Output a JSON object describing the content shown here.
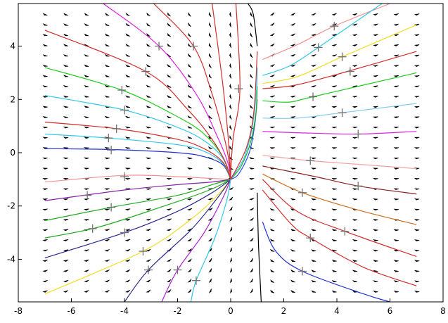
{
  "chart_data": {
    "type": "line",
    "title": "",
    "xlabel": "",
    "ylabel": "",
    "xlim": [
      -8,
      8
    ],
    "ylim": [
      -5.6,
      5.6
    ],
    "grid": false,
    "legend": "none",
    "x_ticks": [
      "-8",
      "-6",
      "-4",
      "-2",
      "0",
      "2",
      "4",
      "6",
      "8"
    ],
    "y_ticks": [
      "-4",
      "-2",
      "0",
      "2",
      "4"
    ],
    "vector_field": {
      "x_range": [
        -7,
        7
      ],
      "y_range": [
        -5.2,
        5.2
      ],
      "nx": 19,
      "ny": 28,
      "color": "#000000"
    },
    "series": [
      {
        "color": "#1f2fd0",
        "points": [
          [
            -7,
            0.15
          ],
          [
            -4.5,
            0.12
          ],
          [
            -2,
            0.0
          ],
          [
            -1,
            -0.15
          ],
          [
            -0.3,
            -0.45
          ],
          [
            0,
            -1
          ]
        ]
      },
      {
        "color": "#30c8e6",
        "points": [
          [
            -7,
            0.7
          ],
          [
            -4.6,
            0.55
          ],
          [
            -2,
            0.3
          ],
          [
            -1,
            0.05
          ],
          [
            -0.3,
            -0.4
          ],
          [
            0,
            -1
          ]
        ]
      },
      {
        "color": "#d22c2c",
        "points": [
          [
            -7,
            1.15
          ],
          [
            -4.3,
            0.9
          ],
          [
            -2,
            0.5
          ],
          [
            -1,
            0.15
          ],
          [
            -0.3,
            -0.35
          ],
          [
            0,
            -1
          ]
        ]
      },
      {
        "color": "#30c8e6",
        "points": [
          [
            -7,
            2.15
          ],
          [
            -4,
            1.6
          ],
          [
            -2,
            0.95
          ],
          [
            -1,
            0.45
          ],
          [
            -0.3,
            -0.2
          ],
          [
            0,
            -1
          ]
        ]
      },
      {
        "color": "#22cc22",
        "points": [
          [
            -7,
            3.2
          ],
          [
            -4.1,
            2.35
          ],
          [
            -2,
            1.35
          ],
          [
            -1,
            0.7
          ],
          [
            -0.3,
            -0.15
          ],
          [
            0,
            -1
          ]
        ]
      },
      {
        "color": "#d22c2c",
        "points": [
          [
            -7,
            4.6
          ],
          [
            -3.2,
            3.05
          ],
          [
            -1.6,
            1.6
          ],
          [
            -0.7,
            0.5
          ],
          [
            -0.2,
            -0.35
          ],
          [
            0,
            -1
          ]
        ]
      },
      {
        "color": "#dd22dd",
        "points": [
          [
            -4.8,
            5.6
          ],
          [
            -2.7,
            4.0
          ],
          [
            -1.3,
            2.2
          ],
          [
            -0.5,
            0.6
          ],
          [
            -0.1,
            -0.4
          ],
          [
            0,
            -1
          ]
        ]
      },
      {
        "color": "#d22c2c",
        "points": [
          [
            -2.9,
            5.6
          ],
          [
            -1.4,
            4.0
          ],
          [
            -0.7,
            2.2
          ],
          [
            -0.25,
            0.6
          ],
          [
            -0.05,
            -0.4
          ],
          [
            0,
            -1
          ]
        ]
      },
      {
        "color": "#d22c2c",
        "points": [
          [
            -0.7,
            5.6
          ],
          [
            -0.35,
            3.0
          ],
          [
            -0.15,
            1.2
          ],
          [
            -0.03,
            -0.3
          ],
          [
            0,
            -1
          ]
        ]
      },
      {
        "color": "#d22c2c",
        "points": [
          [
            0.2,
            5.6
          ],
          [
            0.35,
            2.4
          ],
          [
            0.1,
            0.6
          ],
          [
            0.02,
            -0.4
          ],
          [
            0,
            -1
          ]
        ]
      },
      {
        "color": "#f09090",
        "points": [
          [
            -7,
            -1.1
          ],
          [
            -4,
            -0.85
          ],
          [
            -2,
            -0.9
          ],
          [
            -1,
            -0.95
          ],
          [
            0,
            -1
          ]
        ]
      },
      {
        "color": "#8822aa",
        "points": [
          [
            -7,
            -1.8
          ],
          [
            -4,
            -1.4
          ],
          [
            -2,
            -1.2
          ],
          [
            -0.7,
            -1.1
          ],
          [
            0,
            -1
          ]
        ]
      },
      {
        "color": "#22aa22",
        "points": [
          [
            -7,
            -2.55
          ],
          [
            -4.5,
            -2.05
          ],
          [
            -2,
            -1.6
          ],
          [
            -0.7,
            -1.2
          ],
          [
            0,
            -1
          ]
        ]
      },
      {
        "color": "#22aa22",
        "points": [
          [
            -7,
            -3.2
          ],
          [
            -5,
            -2.8
          ],
          [
            -2.5,
            -2.0
          ],
          [
            -0.8,
            -1.4
          ],
          [
            0,
            -1
          ]
        ]
      },
      {
        "color": "#2a2a8a",
        "points": [
          [
            -7,
            -3.95
          ],
          [
            -4,
            -3.0
          ],
          [
            -2,
            -2.2
          ],
          [
            -0.7,
            -1.5
          ],
          [
            0,
            -1
          ]
        ]
      },
      {
        "color": "#f2dd22",
        "points": [
          [
            -7,
            -5.3
          ],
          [
            -3.3,
            -3.7
          ],
          [
            -1.5,
            -2.5
          ],
          [
            -0.5,
            -1.6
          ],
          [
            0,
            -1
          ]
        ]
      },
      {
        "color": "#2a2a8a",
        "points": [
          [
            -4.0,
            -5.6
          ],
          [
            -3.1,
            -4.4
          ],
          [
            -1.5,
            -2.9
          ],
          [
            -0.5,
            -1.7
          ],
          [
            0,
            -1
          ]
        ]
      },
      {
        "color": "#aa22cc",
        "points": [
          [
            -2.6,
            -5.6
          ],
          [
            -2.0,
            -4.4
          ],
          [
            -1.0,
            -3.0
          ],
          [
            -0.3,
            -1.7
          ],
          [
            0,
            -1
          ]
        ]
      },
      {
        "color": "#30c8e6",
        "points": [
          [
            -1.5,
            -5.6
          ],
          [
            -1.3,
            -4.8
          ],
          [
            -0.6,
            -3.2
          ],
          [
            -0.15,
            -1.8
          ],
          [
            0,
            -1
          ]
        ]
      },
      {
        "color": "#2255ee",
        "points": [
          [
            0,
            -1
          ],
          [
            0.3,
            -0.8
          ],
          [
            0.7,
            0.0
          ],
          [
            0.9,
            1.0
          ],
          [
            1.0,
            2.0
          ]
        ]
      },
      {
        "color": "#22aa22",
        "points": [
          [
            0,
            -1
          ],
          [
            0.4,
            -0.5
          ],
          [
            0.75,
            0.4
          ],
          [
            0.95,
            1.5
          ],
          [
            1.0,
            2.5
          ]
        ]
      },
      {
        "color": "#30c8e6",
        "points": [
          [
            0,
            -1
          ],
          [
            0.5,
            -0.2
          ],
          [
            0.8,
            0.9
          ],
          [
            0.97,
            2.3
          ],
          [
            1.0,
            3.2
          ]
        ]
      },
      {
        "color": "#d22c2c",
        "points": [
          [
            0,
            -1
          ],
          [
            0.6,
            0.2
          ],
          [
            0.88,
            1.6
          ],
          [
            1.0,
            3.8
          ]
        ]
      },
      {
        "color": "#f09090",
        "points": [
          [
            1.2,
            3.5
          ],
          [
            2.5,
            4.05
          ],
          [
            3.9,
            4.75
          ],
          [
            6.0,
            5.6
          ]
        ]
      },
      {
        "color": "#30c8e6",
        "points": [
          [
            1.2,
            2.9
          ],
          [
            2.2,
            3.25
          ],
          [
            3.3,
            3.95
          ],
          [
            5.7,
            5.6
          ]
        ]
      },
      {
        "color": "#f2dd22",
        "points": [
          [
            1.2,
            2.6
          ],
          [
            2.5,
            2.85
          ],
          [
            4.2,
            3.6
          ],
          [
            7.0,
            4.8
          ]
        ]
      },
      {
        "color": "#d22c2c",
        "points": [
          [
            1.2,
            2.4
          ],
          [
            2.5,
            2.55
          ],
          [
            4.4,
            3.05
          ],
          [
            7.0,
            3.8
          ]
        ]
      },
      {
        "color": "#22cc22",
        "points": [
          [
            1.2,
            1.95
          ],
          [
            2.2,
            1.9
          ],
          [
            3.1,
            2.1
          ],
          [
            7.0,
            3.0
          ]
        ]
      },
      {
        "color": "#88ccee",
        "points": [
          [
            1.2,
            1.3
          ],
          [
            2.5,
            1.3
          ],
          [
            4.2,
            1.5
          ],
          [
            7.0,
            1.85
          ]
        ]
      },
      {
        "color": "#dd22dd",
        "points": [
          [
            1.2,
            0.8
          ],
          [
            2.5,
            0.75
          ],
          [
            4.8,
            0.7
          ],
          [
            7.0,
            0.8
          ]
        ]
      },
      {
        "color": "#f0a0a0",
        "points": [
          [
            1.2,
            -0.1
          ],
          [
            3.0,
            -0.3
          ],
          [
            5.0,
            -0.45
          ],
          [
            7.0,
            -0.6
          ]
        ]
      },
      {
        "color": "#8b2222",
        "points": [
          [
            1.2,
            -0.5
          ],
          [
            3.2,
            -0.9
          ],
          [
            4.8,
            -1.25
          ],
          [
            7.0,
            -1.55
          ]
        ]
      },
      {
        "color": "#c87020",
        "points": [
          [
            1.2,
            -0.8
          ],
          [
            2.7,
            -1.5
          ],
          [
            4.8,
            -2.15
          ],
          [
            7.0,
            -2.7
          ]
        ]
      },
      {
        "color": "#d22c2c",
        "points": [
          [
            1.2,
            -1.0
          ],
          [
            2.5,
            -2.2
          ],
          [
            4.3,
            -2.95
          ],
          [
            7.0,
            -3.9
          ]
        ]
      },
      {
        "color": "#d22c2c",
        "points": [
          [
            1.2,
            -1.4
          ],
          [
            2.3,
            -2.7
          ],
          [
            3.0,
            -3.2
          ],
          [
            5.0,
            -4.3
          ],
          [
            7.0,
            -5.0
          ]
        ]
      },
      {
        "color": "#1f2fd0",
        "points": [
          [
            1.2,
            -2.6
          ],
          [
            1.7,
            -3.7
          ],
          [
            2.7,
            -4.45
          ],
          [
            5.0,
            -5.3
          ],
          [
            6.0,
            -5.6
          ]
        ]
      },
      {
        "color": "#000000",
        "points": [
          [
            0.65,
            5.6
          ],
          [
            0.85,
            5.2
          ],
          [
            1.0,
            4.0
          ]
        ]
      },
      {
        "color": "#000000",
        "points": [
          [
            1.0,
            -1.5
          ],
          [
            1.05,
            -3.5
          ],
          [
            1.15,
            -5.6
          ]
        ]
      }
    ],
    "markers": {
      "style": "plus",
      "color": "#707070",
      "points": [
        [
          -4.5,
          0.1
        ],
        [
          -4.6,
          0.55
        ],
        [
          -4.3,
          0.9
        ],
        [
          -4.0,
          1.6
        ],
        [
          -4.1,
          2.35
        ],
        [
          -3.2,
          3.05
        ],
        [
          -2.7,
          4.0
        ],
        [
          -1.4,
          4.0
        ],
        [
          0.3,
          2.4
        ],
        [
          -4.0,
          -0.9
        ],
        [
          -5.4,
          -1.6
        ],
        [
          -4.5,
          -2.05
        ],
        [
          -5.2,
          -2.85
        ],
        [
          -4.0,
          -3.0
        ],
        [
          -3.3,
          -3.7
        ],
        [
          -3.1,
          -4.4
        ],
        [
          -2.0,
          -4.4
        ],
        [
          -1.3,
          -4.8
        ],
        [
          3.9,
          4.75
        ],
        [
          3.3,
          3.95
        ],
        [
          4.2,
          3.6
        ],
        [
          4.5,
          3.05
        ],
        [
          3.1,
          2.1
        ],
        [
          4.2,
          1.5
        ],
        [
          4.8,
          0.7
        ],
        [
          3.0,
          -0.3
        ],
        [
          4.8,
          -1.25
        ],
        [
          2.7,
          -1.5
        ],
        [
          4.3,
          -2.95
        ],
        [
          3.0,
          -3.2
        ],
        [
          2.7,
          -4.45
        ]
      ]
    }
  }
}
